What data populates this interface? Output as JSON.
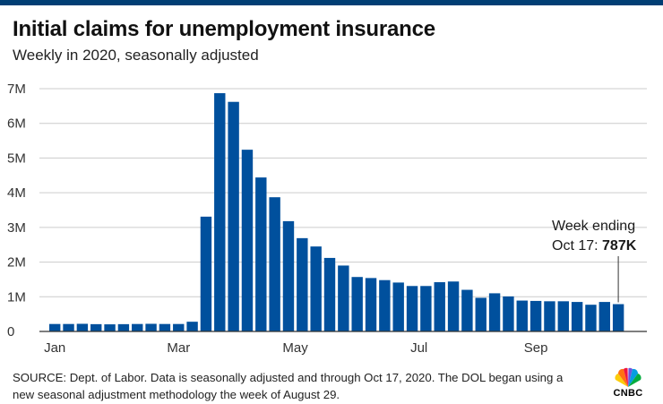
{
  "header": {
    "title": "Initial claims for unemployment insurance",
    "subtitle": "Weekly in 2020, seasonally adjusted"
  },
  "annotation": {
    "line1": "Week ending",
    "line2_prefix": "Oct 17: ",
    "line2_value": "787K"
  },
  "footer": {
    "source": "SOURCE: Dept. of Labor. Data is seasonally adjusted and through Oct 17, 2020. The DOL began using a new seasonal adjustment methodology the week of August 29.",
    "logo_text": "CNBC"
  },
  "colors": {
    "bar": "#00509d",
    "top_bar": "#003e74",
    "grid": "#cccccc",
    "axis": "#333333"
  },
  "chart_data": {
    "type": "bar",
    "title": "Initial claims for unemployment insurance",
    "subtitle": "Weekly in 2020, seasonally adjusted",
    "xlabel": "",
    "ylabel": "",
    "ylim": [
      0,
      7000000
    ],
    "yticks": [
      0,
      1000000,
      2000000,
      3000000,
      4000000,
      5000000,
      6000000,
      7000000
    ],
    "ytick_labels": [
      "0",
      "1M",
      "2M",
      "3M",
      "4M",
      "5M",
      "6M",
      "7M"
    ],
    "xtick_labels": [
      {
        "label": "Jan",
        "week_index": 0
      },
      {
        "label": "Mar",
        "week_index": 9
      },
      {
        "label": "May",
        "week_index": 17.5
      },
      {
        "label": "Jul",
        "week_index": 26.5
      },
      {
        "label": "Sep",
        "week_index": 35
      }
    ],
    "grid": true,
    "legend": "none",
    "series": [
      {
        "values": [
          215000,
          215000,
          220000,
          210000,
          205000,
          210000,
          215000,
          220000,
          215000,
          215000,
          280000,
          3310000,
          6870000,
          6620000,
          5240000,
          4440000,
          3870000,
          3180000,
          2690000,
          2450000,
          2120000,
          1900000,
          1570000,
          1540000,
          1480000,
          1410000,
          1310000,
          1310000,
          1420000,
          1440000,
          1200000,
          970000,
          1100000,
          1010000,
          890000,
          880000,
          870000,
          870000,
          850000,
          770000,
          850000,
          787000
        ]
      }
    ]
  }
}
